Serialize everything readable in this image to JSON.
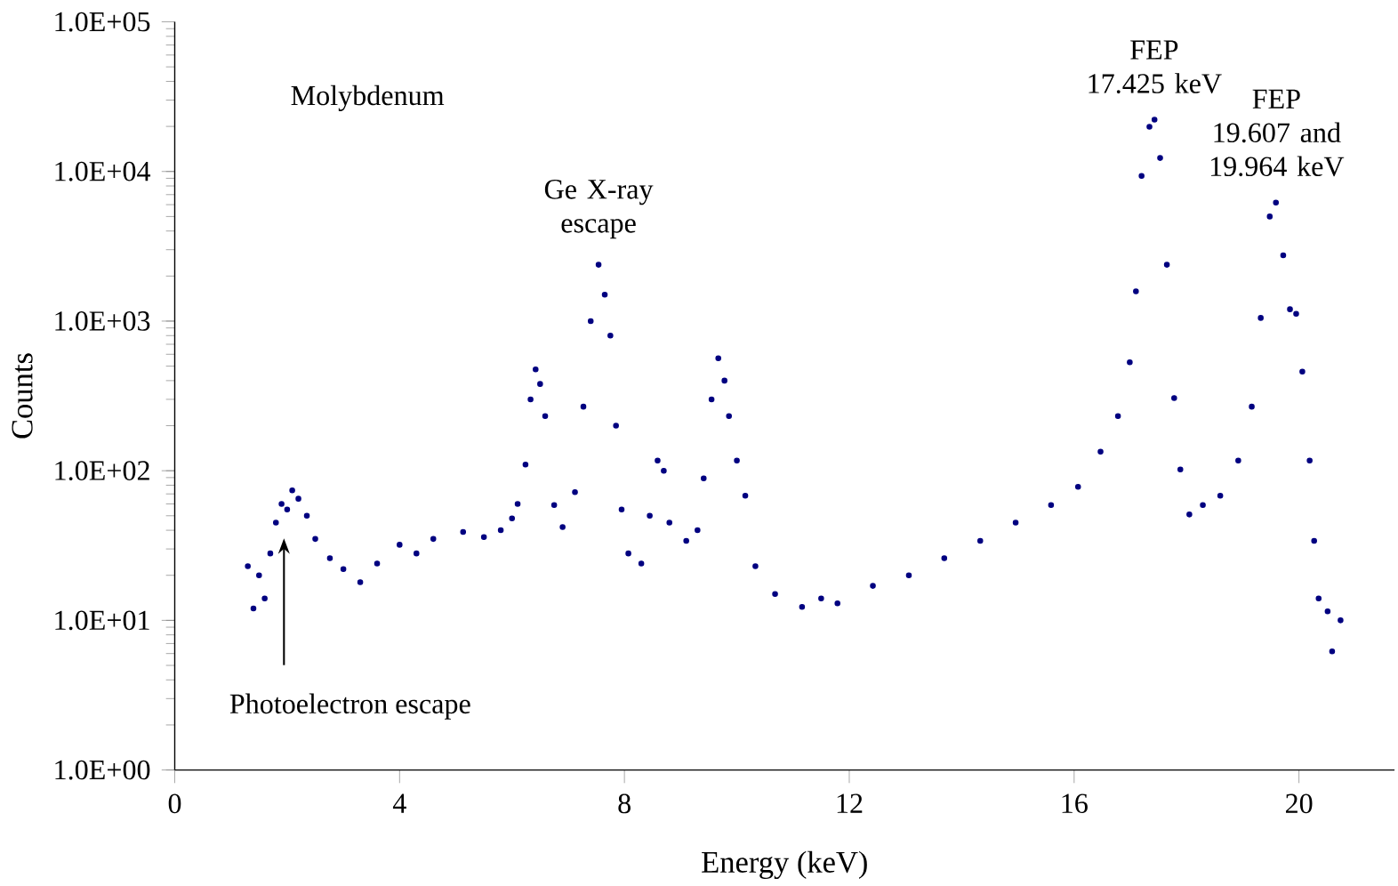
{
  "chart_data": {
    "type": "scatter",
    "xlabel": "Energy (keV)",
    "ylabel": "Counts",
    "color": "#000080",
    "marker": "circle",
    "log": "y",
    "grid": false,
    "xlim": [
      0,
      21.7
    ],
    "xticks": [
      0,
      4,
      8,
      12,
      16,
      20
    ],
    "ylim": [
      1,
      100000
    ],
    "yticks": [
      {
        "value": 1,
        "label": "1.0E+00"
      },
      {
        "value": 10,
        "label": "1.0E+01"
      },
      {
        "value": 100,
        "label": "1.0E+02"
      },
      {
        "value": 1000,
        "label": "1.0E+03"
      },
      {
        "value": 10000,
        "label": "1.0E+04"
      },
      {
        "value": 100000,
        "label": "1.0E+05"
      }
    ],
    "x": [
      1.3,
      1.4,
      1.5,
      1.6,
      1.7,
      1.8,
      1.9,
      2.0,
      2.09,
      2.2,
      2.35,
      2.5,
      2.76,
      3.0,
      3.3,
      3.6,
      4.0,
      4.3,
      4.6,
      5.13,
      5.5,
      5.8,
      6.0,
      6.1,
      6.24,
      6.33,
      6.42,
      6.5,
      6.59,
      6.75,
      6.9,
      7.12,
      7.27,
      7.4,
      7.54,
      7.65,
      7.75,
      7.85,
      7.95,
      8.07,
      8.3,
      8.45,
      8.59,
      8.7,
      8.8,
      9.1,
      9.3,
      9.41,
      9.55,
      9.67,
      9.78,
      9.86,
      10.0,
      10.15,
      10.33,
      10.68,
      11.16,
      11.5,
      11.79,
      12.42,
      13.06,
      13.69,
      14.33,
      14.96,
      15.59,
      16.07,
      16.47,
      16.78,
      16.99,
      17.1,
      17.2,
      17.34,
      17.43,
      17.53,
      17.65,
      17.78,
      17.89,
      18.05,
      18.29,
      18.6,
      18.92,
      19.16,
      19.32,
      19.48,
      19.59,
      19.72,
      19.84,
      19.95,
      20.06,
      20.19,
      20.27,
      20.35,
      20.51,
      20.59,
      20.74
    ],
    "values": [
      23,
      12,
      20,
      14,
      28,
      45,
      60,
      55,
      74,
      65,
      50,
      35,
      26,
      22,
      18,
      24,
      32,
      28,
      35,
      39,
      36,
      40,
      48,
      60,
      110,
      300,
      475,
      380,
      232,
      59,
      42,
      72,
      268,
      1000,
      2380,
      1500,
      800,
      200,
      55,
      28,
      24,
      50,
      117,
      100,
      45,
      34,
      40,
      89,
      300,
      565,
      400,
      232,
      117,
      68,
      23,
      15,
      12.3,
      14,
      13,
      17,
      20,
      26,
      34,
      45,
      59,
      78,
      134,
      232,
      530,
      1580,
      9330,
      19900,
      22200,
      12300,
      2380,
      306,
      102,
      51,
      59,
      68,
      117,
      268,
      1050,
      5000,
      6200,
      2750,
      1200,
      1120,
      460,
      117,
      34,
      14,
      11.5,
      6.2,
      10
    ],
    "annotations": [
      "Molybdenum",
      {
        "text": "Ge X-ray escape",
        "x": 7.54,
        "y": 2380
      },
      {
        "text": "FEP 17.425 keV",
        "x": 17.425,
        "y": 22200
      },
      {
        "text": "FEP 19.607 and 19.964 keV",
        "x": 19.6,
        "y": 6200
      },
      "Photoelectron escape"
    ]
  }
}
